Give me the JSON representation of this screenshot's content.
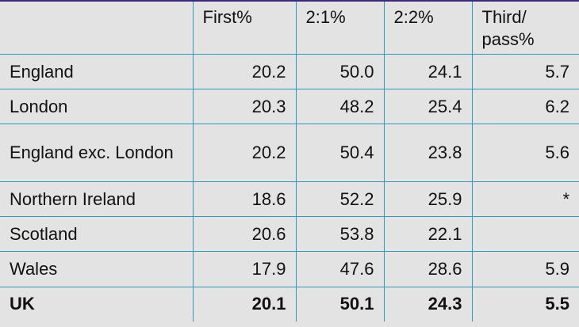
{
  "table": {
    "headers": [
      "",
      "First%",
      "2:1%",
      "2:2%",
      "Third/\npass%"
    ],
    "rows": [
      {
        "region": "England",
        "first": "20.2",
        "upper_second": "50.0",
        "lower_second": "24.1",
        "third_pass": "5.7"
      },
      {
        "region": "London",
        "first": "20.3",
        "upper_second": "48.2",
        "lower_second": "25.4",
        "third_pass": "6.2"
      },
      {
        "region": "England exc. London",
        "first": "20.2",
        "upper_second": "50.4",
        "lower_second": "23.8",
        "third_pass": "5.6"
      },
      {
        "region": "Northern Ireland",
        "first": "18.6",
        "upper_second": "52.2",
        "lower_second": "25.9",
        "third_pass": "*"
      },
      {
        "region": "Scotland",
        "first": "20.6",
        "upper_second": "53.8",
        "lower_second": "22.1",
        "third_pass": ""
      },
      {
        "region": "Wales",
        "first": "17.9",
        "upper_second": "47.6",
        "lower_second": "28.6",
        "third_pass": "5.9"
      },
      {
        "region": "UK",
        "first": "20.1",
        "upper_second": "50.1",
        "lower_second": "24.3",
        "third_pass": "5.5"
      }
    ]
  },
  "colors": {
    "background": "#e3e3e3",
    "grid": "#2d9bb7",
    "top_rule": "#3b2a78",
    "text": "#111111"
  }
}
